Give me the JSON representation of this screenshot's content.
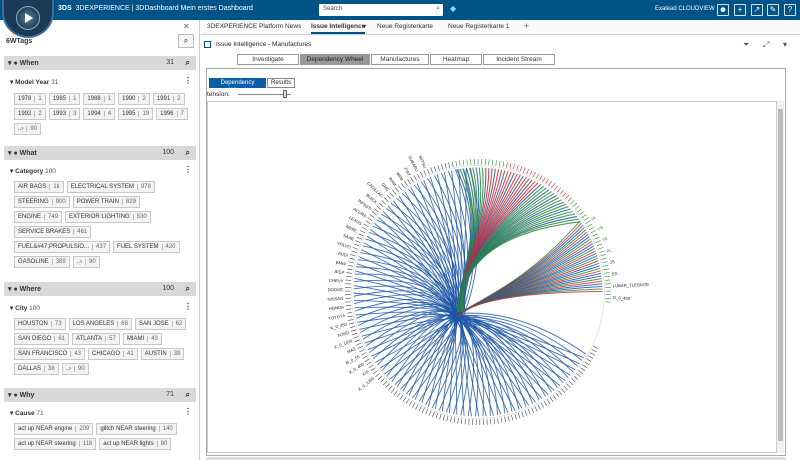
{
  "topbar": {
    "brand_logo": "3DS",
    "brand_text": "3DEXPERIENCE | 3DDashboard Mein erstes Dashboard",
    "search_placeholder": "Search",
    "user": "Exalead CLOUDVIEW",
    "icons": [
      "user-icon",
      "plus-icon",
      "share-icon",
      "tools-icon",
      "help-icon"
    ]
  },
  "left": {
    "title": "6WTags",
    "sections": [
      {
        "name": "When",
        "count": "31",
        "icon": "clock-icon",
        "category": "Model Year",
        "cat_count": "31",
        "chips": [
          [
            "1978",
            "1"
          ],
          [
            "1985",
            "1"
          ],
          [
            "1988",
            "1"
          ],
          [
            "1990",
            "2"
          ],
          [
            "1991",
            "2"
          ],
          [
            "1992",
            "2"
          ],
          [
            "1993",
            "3"
          ],
          [
            "1994",
            "4"
          ],
          [
            "1995",
            "19"
          ],
          [
            "1996",
            "7"
          ]
        ],
        "more": "90"
      },
      {
        "name": "What",
        "count": "100",
        "icon": "gear-icon",
        "category": "Category",
        "cat_count": "100",
        "chips": [
          [
            "AIR BAGS",
            "1k"
          ],
          [
            "ELECTRICAL SYSTEM",
            "978"
          ],
          [
            "STEERING",
            "900"
          ],
          [
            "POWER TRAIN",
            "829"
          ],
          [
            "ENGINE",
            "749"
          ],
          [
            "EXTERIOR LIGHTING",
            "530"
          ],
          [
            "SERVICE BRAKES",
            "461"
          ],
          [
            "FUEL&#47;PROPULSIO...",
            "437"
          ],
          [
            "FUEL SYSTEM",
            "420"
          ],
          [
            "GASOLINE",
            "389"
          ]
        ],
        "more": "90"
      },
      {
        "name": "Where",
        "count": "100",
        "icon": "pin-icon",
        "category": "City",
        "cat_count": "100",
        "chips": [
          [
            "HOUSTON",
            "73"
          ],
          [
            "LOS ANGELES",
            "68"
          ],
          [
            "SAN JOSE",
            "62"
          ],
          [
            "SAN DIEGO",
            "61"
          ],
          [
            "ATLANTA",
            "57"
          ],
          [
            "MIAMI",
            "43"
          ],
          [
            "SAN FRANCISCO",
            "43"
          ],
          [
            "CHICAGO",
            "41"
          ],
          [
            "AUSTIN",
            "39"
          ],
          [
            "DALLAS",
            "38"
          ]
        ],
        "more": "90"
      },
      {
        "name": "Why",
        "count": "71",
        "icon": "question-icon",
        "category": "Cause",
        "cat_count": "71",
        "chips": [
          [
            "act up NEAR engine",
            "209"
          ],
          [
            "glitch NEAR steering",
            "140"
          ],
          [
            "act up NEAR steering",
            "118"
          ],
          [
            "act up NEAR lights",
            "80"
          ]
        ],
        "more": ""
      }
    ]
  },
  "tabs": [
    "3DEXPERIENCE Platform News",
    "Issue Intelligence",
    "Neue Registerkarte",
    "Neue Registerkarte 1"
  ],
  "widget": {
    "title": "Issue Intelligence - Manufactures",
    "subtabs": [
      "Investigate",
      "Dependency Wheel",
      "Manufactures",
      "Heatmap",
      "Incident Stream"
    ],
    "dtabs": [
      "Dependency Wheel",
      "Results"
    ],
    "tension_label": "tension:"
  },
  "wheel": {
    "colors": {
      "blue": "#1f57a8",
      "red": "#d42a2a",
      "green": "#2a8a3a",
      "outline": "#ffffff"
    },
    "left_labels": [
      "K_0_1200",
      "KIA",
      "K_0_400",
      "M_0_55",
      "MAZ",
      "K_0_1100",
      "FORD",
      "K_0_450",
      "TOYOTA",
      "HONDA",
      "NISSAN",
      "DODGE",
      "CHEVY",
      "JEEP",
      "BMW",
      "AUDI",
      "VOLVO",
      "SAAB",
      "MERC",
      "LEXUS",
      "ACURA",
      "INFINITI",
      "BUICK",
      "CADILLAC",
      "GMC",
      "RAM",
      "MINI",
      "FIAT",
      "SUBARU",
      "MITSU"
    ],
    "right_labels": [
      "IA",
      "US",
      "FE",
      "AL",
      "JS",
      "ES",
      "LUBAR_TLESNITE",
      "G_0_400"
    ]
  }
}
